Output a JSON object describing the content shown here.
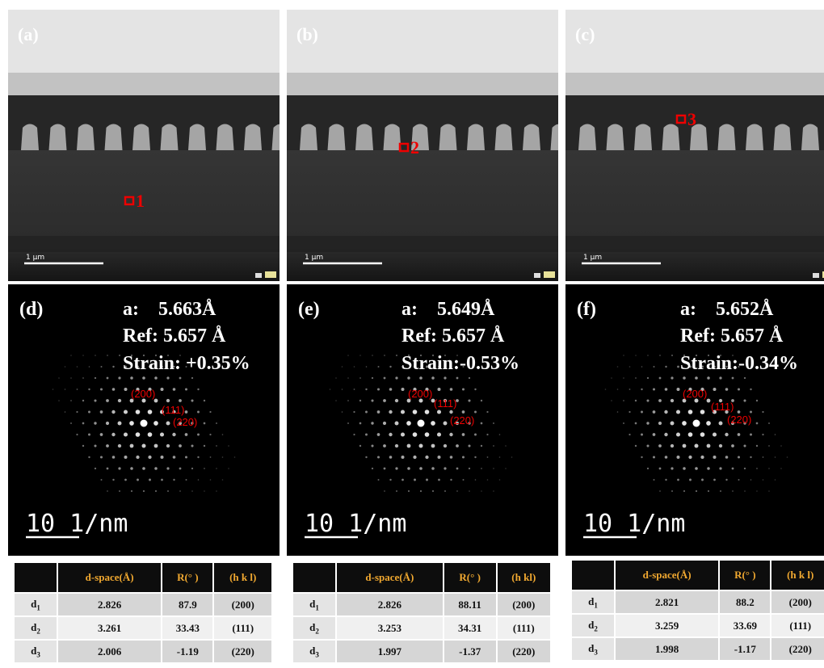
{
  "panels": [
    {
      "tem": {
        "label": "(a)",
        "marker": "1",
        "scale": "1 µm"
      },
      "diffraction": {
        "label": "(d)",
        "a": "a:    5.663Å",
        "ref": "Ref: 5.657 Å",
        "strain": "Strain: +0.35%",
        "spots": [
          "(200)",
          "(111)",
          "(220)"
        ],
        "scale": "10 1/nm"
      },
      "table": {
        "header": [
          "d-space(Å)",
          "R(° )",
          "(h k l)"
        ],
        "rows": [
          {
            "label": "d",
            "sub": "1",
            "cells": [
              2.826,
              87.9,
              "(200)"
            ]
          },
          {
            "label": "d",
            "sub": "2",
            "cells": [
              3.261,
              33.43,
              "(111)"
            ]
          },
          {
            "label": "d",
            "sub": "3",
            "cells": [
              2.006,
              -1.19,
              "(220)"
            ]
          }
        ]
      }
    },
    {
      "tem": {
        "label": "(b)",
        "marker": "2",
        "scale": "1 µm"
      },
      "diffraction": {
        "label": "(e)",
        "a": "a:    5.649Å",
        "ref": "Ref: 5.657 Å",
        "strain": "Strain:-0.53%",
        "spots": [
          "(200)",
          "(111)",
          "(220)"
        ],
        "scale": "10 1/nm"
      },
      "table": {
        "header": [
          "d-space(Å)",
          "R(° )",
          "(h kl)"
        ],
        "rows": [
          {
            "label": "d",
            "sub": "1",
            "cells": [
              2.826,
              88.11,
              "(200)"
            ]
          },
          {
            "label": "d",
            "sub": "2",
            "cells": [
              3.253,
              34.31,
              "(111)"
            ]
          },
          {
            "label": "d",
            "sub": "3",
            "cells": [
              1.997,
              -1.37,
              "(220)"
            ]
          }
        ]
      }
    },
    {
      "tem": {
        "label": "(c)",
        "marker": "3",
        "scale": "1 µm"
      },
      "diffraction": {
        "label": "(f)",
        "a": "a:    5.652Å",
        "ref": "Ref: 5.657 Å",
        "strain": "Strain:-0.34%",
        "spots": [
          "(200)",
          "(111)",
          "(220)"
        ],
        "scale": "10 1/nm"
      },
      "table": {
        "header": [
          "d-space(Å)",
          "R(° )",
          "(h k l)"
        ],
        "rows": [
          {
            "label": "d",
            "sub": "1",
            "cells": [
              2.821,
              88.2,
              "(200)"
            ]
          },
          {
            "label": "d",
            "sub": "2",
            "cells": [
              3.259,
              33.69,
              "(111)"
            ]
          },
          {
            "label": "d",
            "sub": "3",
            "cells": [
              1.998,
              -1.17,
              "(220)"
            ]
          }
        ]
      }
    }
  ]
}
